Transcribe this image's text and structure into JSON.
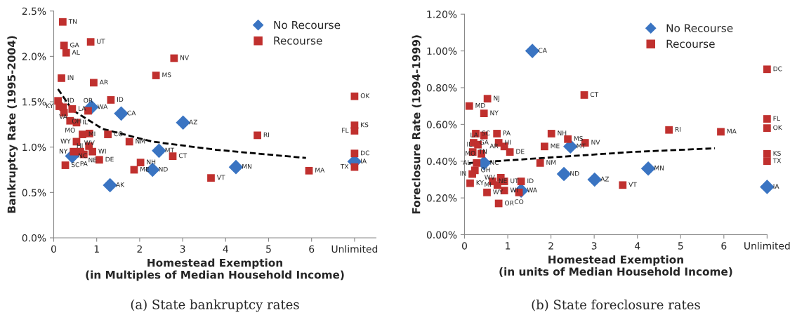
{
  "chart_data": [
    {
      "type": "scatter",
      "xlabel": "Homestead Exemption\n(in Multiples of Median Household Income)",
      "ylabel": "Bankruptcy Rate (1995-2004)",
      "xlim": [
        0,
        7.5
      ],
      "ylim": [
        0,
        2.5
      ],
      "xticks": [
        0,
        1,
        2,
        3,
        4,
        5,
        6,
        {
          "value": 7,
          "label": "Unlimited"
        }
      ],
      "yticks": [
        {
          "value": 0,
          "label": "0.0%"
        },
        {
          "value": 0.5,
          "label": "0.5%"
        },
        {
          "value": 1.0,
          "label": "1.0%"
        },
        {
          "value": 1.5,
          "label": "1.5%"
        },
        {
          "value": 2.0,
          "label": "2.0%"
        },
        {
          "value": 2.5,
          "label": "2.5%"
        }
      ],
      "grid": false,
      "legend": "top right",
      "series": [
        {
          "name": "No Recourse",
          "marker": "diamond",
          "color": "#3a74c2",
          "x": [
            0.88,
            1.57,
            3.01,
            2.45,
            0.43,
            2.3,
            1.31,
            4.24,
            7
          ],
          "values": [
            1.44,
            1.37,
            1.27,
            0.96,
            0.9,
            0.75,
            0.58,
            0.78,
            0.84
          ]
        },
        {
          "name": "Recourse",
          "marker": "square",
          "color": "#c0302e",
          "x": [
            0.21,
            0.24,
            0.29,
            0.86,
            2.8,
            2.38,
            0.18,
            0.93,
            1.33,
            0.1,
            0.13,
            0.22,
            0.43,
            0.24,
            0.8,
            0.38,
            0.53,
            0.67,
            0.83,
            1.26,
            1.76,
            0.53,
            0.82,
            2.77,
            0.46,
            0.62,
            0.9,
            0.7,
            1.06,
            0.27,
            2.02,
            1.87,
            3.66,
            4.74,
            5.94,
            7,
            7,
            7,
            7,
            7
          ],
          "values": [
            2.38,
            2.12,
            2.04,
            2.16,
            1.98,
            1.79,
            1.76,
            1.71,
            1.52,
            1.51,
            1.45,
            1.44,
            1.42,
            1.38,
            1.4,
            1.29,
            1.27,
            1.14,
            1.15,
            1.14,
            1.06,
            1.06,
            1.01,
            0.9,
            0.95,
            0.95,
            0.95,
            0.92,
            0.86,
            0.8,
            0.83,
            0.75,
            0.66,
            1.13,
            0.74,
            1.56,
            1.24,
            1.18,
            0.93,
            0.78
          ]
        },
        {
          "type": "line",
          "line_style": "dashed",
          "marker": "none",
          "color": "#000000",
          "x": [
            0.1,
            0.43,
            1.14,
            2.3,
            3.79,
            5.87
          ],
          "values": [
            1.64,
            1.41,
            1.2,
            1.06,
            0.97,
            0.88
          ]
        }
      ],
      "annotations": [
        {
          "text": "WA",
          "x": 0.88,
          "y": 1.44
        },
        {
          "text": "CA",
          "x": 1.57,
          "y": 1.37
        },
        {
          "text": "AZ",
          "x": 3.01,
          "y": 1.27
        },
        {
          "text": "MT",
          "x": 2.45,
          "y": 0.96
        },
        {
          "text": "NC",
          "x": 0.43,
          "y": 0.9
        },
        {
          "text": "ND",
          "x": 2.3,
          "y": 0.75
        },
        {
          "text": "AK",
          "x": 1.31,
          "y": 0.58
        },
        {
          "text": "MN",
          "x": 4.24,
          "y": 0.78
        },
        {
          "text": "IA",
          "x": 7,
          "y": 0.84
        },
        {
          "text": "TN",
          "x": 0.21,
          "y": 2.38
        },
        {
          "text": "GA",
          "x": 0.24,
          "y": 2.12
        },
        {
          "text": "AL",
          "x": 0.29,
          "y": 2.04
        },
        {
          "text": "UT",
          "x": 0.86,
          "y": 2.16
        },
        {
          "text": "NV",
          "x": 2.8,
          "y": 1.98
        },
        {
          "text": "MS",
          "x": 2.38,
          "y": 1.79
        },
        {
          "text": "IN",
          "x": 0.18,
          "y": 1.76
        },
        {
          "text": "AR",
          "x": 0.93,
          "y": 1.71
        },
        {
          "text": "ID",
          "x": 1.33,
          "y": 1.52
        },
        {
          "text": "MD",
          "x": 0.1,
          "y": 1.51
        },
        {
          "text": "KY",
          "x": 0.13,
          "y": 1.45
        },
        {
          "text": "VA",
          "x": 0.22,
          "y": 1.44
        },
        {
          "text": "LA",
          "x": 0.43,
          "y": 1.42
        },
        {
          "text": "OH",
          "x": 0.24,
          "y": 1.38
        },
        {
          "text": "OR",
          "x": 0.8,
          "y": 1.4
        },
        {
          "text": "MO",
          "x": 0.38,
          "y": 1.29
        },
        {
          "text": "IL",
          "x": 0.53,
          "y": 1.27
        },
        {
          "text": "MI",
          "x": 0.67,
          "y": 1.14
        },
        {
          "text": "WV",
          "x": 0.83,
          "y": 1.15
        },
        {
          "text": "CO",
          "x": 1.26,
          "y": 1.14
        },
        {
          "text": "NM",
          "x": 1.76,
          "y": 1.06
        },
        {
          "text": "WY",
          "x": 0.53,
          "y": 1.06
        },
        {
          "text": "HI",
          "x": 0.82,
          "y": 1.01
        },
        {
          "text": "CT",
          "x": 2.77,
          "y": 0.9
        },
        {
          "text": "NY",
          "x": 0.46,
          "y": 0.95
        },
        {
          "text": "NE",
          "x": 0.62,
          "y": 0.95
        },
        {
          "text": "WI",
          "x": 0.9,
          "y": 0.95
        },
        {
          "text": "PA",
          "x": 0.7,
          "y": 0.92
        },
        {
          "text": "DE",
          "x": 1.06,
          "y": 0.86
        },
        {
          "text": "SC",
          "x": 0.27,
          "y": 0.8
        },
        {
          "text": "NH",
          "x": 2.02,
          "y": 0.83
        },
        {
          "text": "ME",
          "x": 1.87,
          "y": 0.75
        },
        {
          "text": "VT",
          "x": 3.66,
          "y": 0.66
        },
        {
          "text": "RI",
          "x": 4.74,
          "y": 1.13
        },
        {
          "text": "MA",
          "x": 5.94,
          "y": 0.74
        },
        {
          "text": "OK",
          "x": 7,
          "y": 1.56
        },
        {
          "text": "KS",
          "x": 7,
          "y": 1.24
        },
        {
          "text": "FL",
          "x": 7,
          "y": 1.18
        },
        {
          "text": "DC",
          "x": 7,
          "y": 0.93
        },
        {
          "text": "TX",
          "x": 7,
          "y": 0.78
        },
        "(a) State bankruptcy rates"
      ]
    },
    {
      "type": "scatter",
      "xlabel": "Homestead Exemption\n(in units of Median Household Income)",
      "ylabel": "Foreclosure Rate (1994-1999)",
      "xlim": [
        0,
        7
      ],
      "ylim": [
        0,
        1.2
      ],
      "xticks": [
        0,
        1,
        2,
        3,
        4,
        5,
        6,
        {
          "value": 7,
          "label": "Unlimited"
        }
      ],
      "yticks": [
        {
          "value": 0,
          "label": "0.00%"
        },
        {
          "value": 0.2,
          "label": "0.20%"
        },
        {
          "value": 0.4,
          "label": "0.40%"
        },
        {
          "value": 0.6,
          "label": "0.60%"
        },
        {
          "value": 0.8,
          "label": "0.80%"
        },
        {
          "value": 1.0,
          "label": "1.00%"
        },
        {
          "value": 1.2,
          "label": "1.20%"
        }
      ],
      "grid": false,
      "legend": "top right",
      "series": [
        {
          "name": "No Recourse",
          "marker": "diamond",
          "color": "#3a74c2",
          "x": [
            1.57,
            0.45,
            2.45,
            2.3,
            3.01,
            1.31,
            4.25,
            7
          ],
          "values": [
            1.0,
            0.39,
            0.48,
            0.33,
            0.3,
            0.24,
            0.36,
            0.26
          ]
        },
        {
          "name": "Recourse",
          "marker": "square",
          "color": "#c0302e",
          "x": [
            2.77,
            0.53,
            0.11,
            0.45,
            0.26,
            0.75,
            0.45,
            0.21,
            0.31,
            0.79,
            0.92,
            1.05,
            0.19,
            0.39,
            0.28,
            0.24,
            0.18,
            0.13,
            2.01,
            2.39,
            2.79,
            1.85,
            1.75,
            3.66,
            0.65,
            0.84,
            0.92,
            0.76,
            1.31,
            0.52,
            0.92,
            1.26,
            0.79,
            4.73,
            5.93,
            7,
            7,
            7,
            7,
            7
          ],
          "values": [
            0.76,
            0.74,
            0.7,
            0.66,
            0.55,
            0.55,
            0.54,
            0.5,
            0.49,
            0.5,
            0.48,
            0.45,
            0.45,
            0.44,
            0.39,
            0.35,
            0.33,
            0.28,
            0.55,
            0.52,
            0.5,
            0.48,
            0.39,
            0.27,
            0.29,
            0.31,
            0.29,
            0.27,
            0.29,
            0.23,
            0.24,
            0.23,
            0.17,
            0.57,
            0.56,
            0.9,
            0.63,
            0.58,
            0.44,
            0.4
          ]
        },
        {
          "type": "line",
          "line_style": "dashed",
          "marker": "none",
          "color": "#000000",
          "x": [
            0.1,
            3.87,
            5.79
          ],
          "values": [
            0.39,
            0.45,
            0.47
          ]
        }
      ],
      "annotations": [
        {
          "text": "CA",
          "x": 1.57,
          "y": 1.0
        },
        {
          "text": "NC",
          "x": 0.45,
          "y": 0.39
        },
        {
          "text": "MT",
          "x": 2.45,
          "y": 0.48
        },
        {
          "text": "ND",
          "x": 2.3,
          "y": 0.33
        },
        {
          "text": "AZ",
          "x": 3.01,
          "y": 0.3
        },
        {
          "text": "WA",
          "x": 1.31,
          "y": 0.24
        },
        {
          "text": "MN",
          "x": 4.25,
          "y": 0.36
        },
        {
          "text": "IA",
          "x": 7,
          "y": 0.26
        },
        {
          "text": "CT",
          "x": 2.77,
          "y": 0.76
        },
        {
          "text": "NJ",
          "x": 0.53,
          "y": 0.74
        },
        {
          "text": "MD",
          "x": 0.11,
          "y": 0.7
        },
        {
          "text": "NY",
          "x": 0.45,
          "y": 0.66
        },
        {
          "text": "SC",
          "x": 0.26,
          "y": 0.55
        },
        {
          "text": "PA",
          "x": 0.75,
          "y": 0.55
        },
        {
          "text": "LA",
          "x": 0.45,
          "y": 0.54
        },
        {
          "text": "GA",
          "x": 0.21,
          "y": 0.5
        },
        {
          "text": "IL",
          "x": 0.31,
          "y": 0.49
        },
        {
          "text": "HI",
          "x": 0.79,
          "y": 0.5
        },
        {
          "text": "AR",
          "x": 0.92,
          "y": 0.48
        },
        {
          "text": "DE",
          "x": 1.05,
          "y": 0.45
        },
        {
          "text": "TN",
          "x": 0.19,
          "y": 0.45
        },
        {
          "text": "MO",
          "x": 0.39,
          "y": 0.44
        },
        {
          "text": "AL",
          "x": 0.28,
          "y": 0.39
        },
        {
          "text": "OH",
          "x": 0.24,
          "y": 0.35
        },
        {
          "text": "IN",
          "x": 0.18,
          "y": 0.33
        },
        {
          "text": "KY",
          "x": 0.13,
          "y": 0.28
        },
        {
          "text": "NH",
          "x": 2.01,
          "y": 0.55
        },
        {
          "text": "MS",
          "x": 2.39,
          "y": 0.52
        },
        {
          "text": "NV",
          "x": 2.79,
          "y": 0.5
        },
        {
          "text": "ME",
          "x": 1.85,
          "y": 0.48
        },
        {
          "text": "NM",
          "x": 1.75,
          "y": 0.39
        },
        {
          "text": "VT",
          "x": 3.66,
          "y": 0.27
        },
        {
          "text": "NE",
          "x": 0.65,
          "y": 0.29
        },
        {
          "text": "WV",
          "x": 0.84,
          "y": 0.31
        },
        {
          "text": "UT",
          "x": 0.92,
          "y": 0.29
        },
        {
          "text": "MI",
          "x": 0.76,
          "y": 0.27
        },
        {
          "text": "ID",
          "x": 1.31,
          "y": 0.29
        },
        {
          "text": "WY",
          "x": 0.52,
          "y": 0.23
        },
        {
          "text": "WI",
          "x": 0.92,
          "y": 0.24
        },
        {
          "text": "CO",
          "x": 1.26,
          "y": 0.23
        },
        {
          "text": "OR",
          "x": 0.79,
          "y": 0.17
        },
        {
          "text": "RI",
          "x": 4.73,
          "y": 0.57
        },
        {
          "text": "MA",
          "x": 5.93,
          "y": 0.56
        },
        {
          "text": "DC",
          "x": 7,
          "y": 0.9
        },
        {
          "text": "FL",
          "x": 7,
          "y": 0.63
        },
        {
          "text": "OK",
          "x": 7,
          "y": 0.58
        },
        {
          "text": "KS",
          "x": 7,
          "y": 0.44
        },
        {
          "text": "TX",
          "x": 7,
          "y": 0.4
        },
        "(b) State foreclosure rates"
      ]
    }
  ]
}
